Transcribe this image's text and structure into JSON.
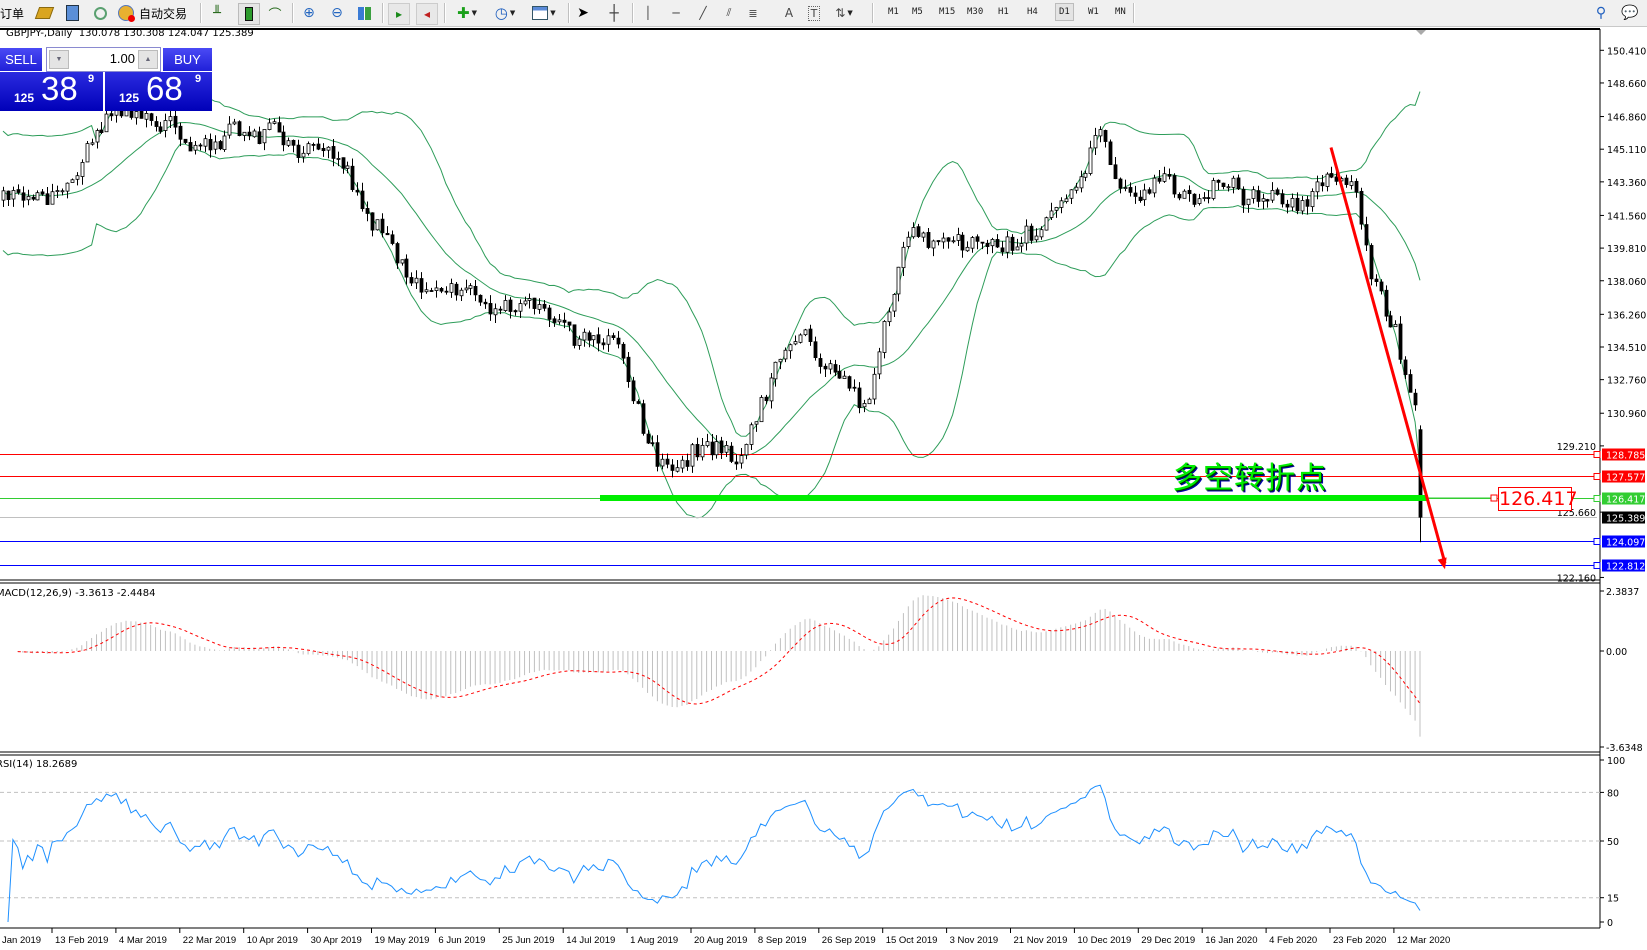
{
  "toolbar": {
    "new_order_label": "订单",
    "autotrade_label": "自动交易",
    "timeframes": [
      "M1",
      "M5",
      "M15",
      "M30",
      "H1",
      "H4",
      "D1",
      "W1",
      "MN"
    ],
    "active_timeframe": "D1"
  },
  "chart": {
    "info": "GBPJPY-,Daily  130.078 130.308 124.047 125.389"
  },
  "trade_panel": {
    "sell_label": "SELL",
    "buy_label": "BUY",
    "lot": "1.00",
    "sell": {
      "prefix": "125",
      "big": "38",
      "sup": "9"
    },
    "buy": {
      "prefix": "125",
      "big": "68",
      "sup": "9"
    }
  },
  "price_axis": {
    "ticks": [
      "150.410",
      "148.660",
      "146.860",
      "145.110",
      "143.360",
      "141.560",
      "139.810",
      "138.060",
      "136.260",
      "134.510",
      "132.760",
      "130.960",
      "129.210",
      "125.660",
      "122.160"
    ]
  },
  "levels": [
    {
      "price": "128.785",
      "color": "#ff0000",
      "text_color": "#ffffff"
    },
    {
      "price": "127.577",
      "color": "#ff0000",
      "text_color": "#ffffff"
    },
    {
      "price": "126.417",
      "color": "#32cd32",
      "text_color": "#ffffff"
    },
    {
      "price": "125.389",
      "color": "#000000",
      "line_color": "#c0c0c0",
      "text_color": "#ffffff"
    },
    {
      "price": "124.097",
      "color": "#0000ff",
      "text_color": "#ffffff"
    },
    {
      "price": "122.812",
      "color": "#0000ff",
      "text_color": "#ffffff"
    }
  ],
  "annotation": {
    "text": "多空转折点",
    "label": "126.417",
    "support_price": 126.417,
    "support_color": "#00ee00",
    "arrow_color": "#ff0000",
    "arrow_from_price": 145.2,
    "arrow_to_price": 122.6
  },
  "price_series": {
    "closes_sampled": [
      142.4,
      142.4,
      142.6,
      143.0,
      145.0,
      146.8,
      147.0,
      146.4,
      146.6,
      145.2,
      145.2,
      146.3,
      145.8,
      146.2,
      144.7,
      145.6,
      144.7,
      142.1,
      140.4,
      139.0,
      137.1,
      137.6,
      137.9,
      136.5,
      136.8,
      137.1,
      135.8,
      135.1,
      134.8,
      135.1,
      131.4,
      128.4,
      128.0,
      129.2,
      129.2,
      128.5,
      131.7,
      134.0,
      135.1,
      133.4,
      132.5,
      131.2,
      136.8,
      140.7,
      139.9,
      140.2,
      140.0,
      140.0,
      140.2,
      140.8,
      141.6,
      143.0,
      146.4,
      142.8,
      142.4,
      143.8,
      142.5,
      142.8,
      143.5,
      142.4,
      142.7,
      141.9,
      142.5,
      143.7,
      143.5,
      137.9,
      135.7,
      131.0
    ],
    "last_bar": {
      "open": 130.078,
      "high": 130.308,
      "low": 124.047,
      "close": 125.389
    },
    "band_color": "#2e9d5a"
  },
  "macd": {
    "title": "MACD(12,26,9) -3.3613 -2.4484",
    "ticks": [
      "2.3837",
      "0.00",
      "-3.6348"
    ],
    "range": [
      -3.6348,
      2.3837
    ],
    "hist_color": "#c0c0c0",
    "signal_color": "#ff0000"
  },
  "rsi": {
    "title": "RSI(14) 18.2689",
    "ticks": [
      "100",
      "80",
      "50",
      "15",
      "0"
    ],
    "levels": [
      80,
      50,
      15
    ],
    "line_color": "#1e90ff"
  },
  "time_axis": {
    "labels": [
      "Jan 2019",
      "13 Feb 2019",
      "4 Mar 2019",
      "22 Mar 2019",
      "10 Apr 2019",
      "30 Apr 2019",
      "19 May 2019",
      "6 Jun 2019",
      "25 Jun 2019",
      "14 Jul 2019",
      "1 Aug 2019",
      "20 Aug 2019",
      "8 Sep 2019",
      "26 Sep 2019",
      "15 Oct 2019",
      "3 Nov 2019",
      "21 Nov 2019",
      "10 Dec 2019",
      "29 Dec 2019",
      "16 Jan 2020",
      "4 Feb 2020",
      "23 Feb 2020",
      "12 Mar 2020"
    ]
  }
}
